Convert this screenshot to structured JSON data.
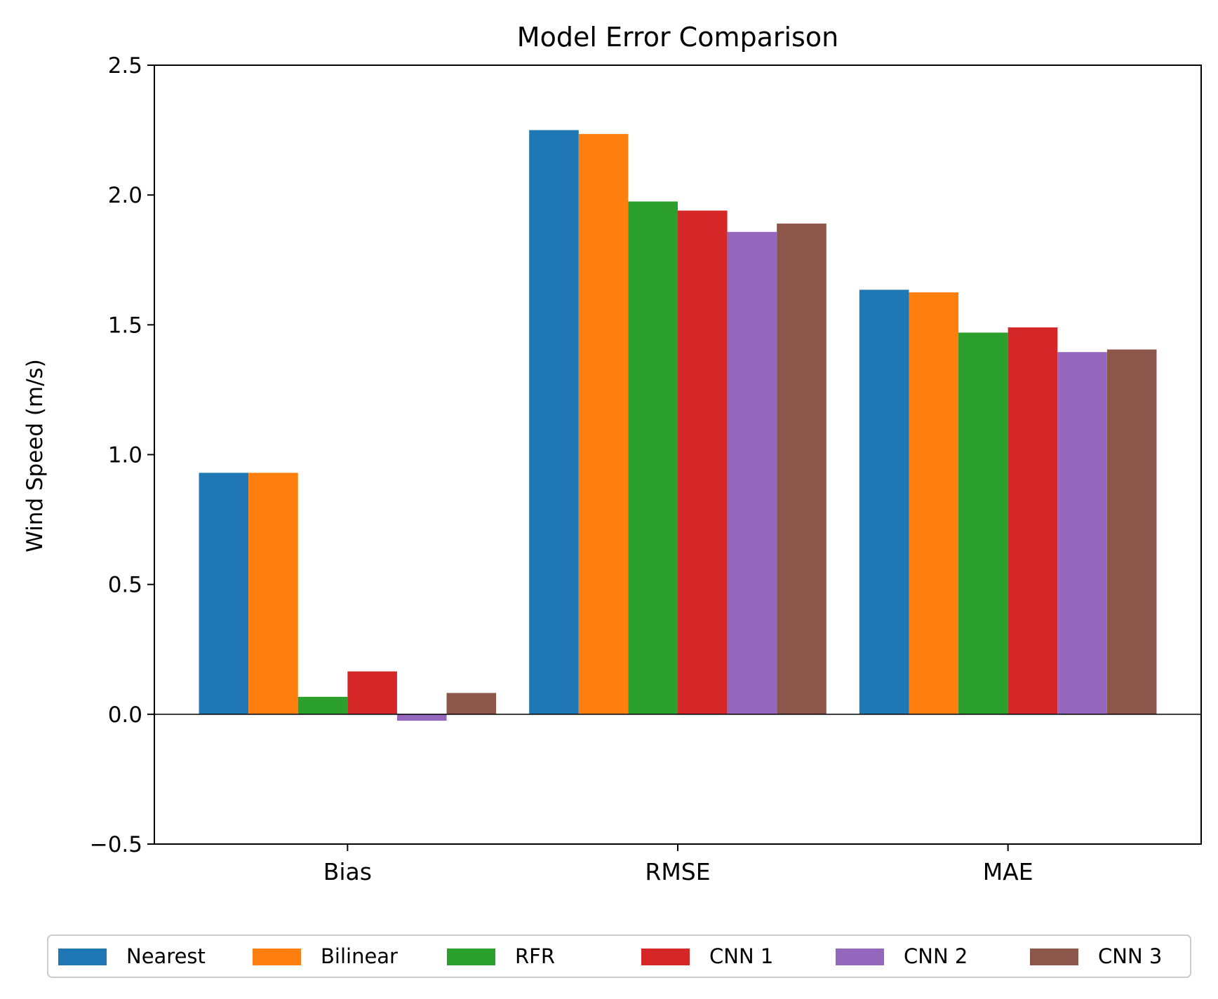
{
  "chart_data": {
    "type": "bar",
    "title": "Model Error Comparison",
    "xlabel": "",
    "ylabel": "Wind Speed (m/s)",
    "ylim": [
      -0.5,
      2.5
    ],
    "yticks": [
      -0.5,
      0.0,
      0.5,
      1.0,
      1.5,
      2.0,
      2.5
    ],
    "ytick_labels": [
      "−0.5",
      "0.0",
      "0.5",
      "1.0",
      "1.5",
      "2.0",
      "2.5"
    ],
    "categories": [
      "Bias",
      "RMSE",
      "MAE"
    ],
    "grid": false,
    "zero_line": true,
    "legend_position": "bottom-center",
    "series": [
      {
        "name": "Nearest",
        "color": "#1f77b4",
        "values": [
          0.93,
          2.25,
          1.635
        ]
      },
      {
        "name": "Bilinear",
        "color": "#ff7f0e",
        "values": [
          0.93,
          2.235,
          1.625
        ]
      },
      {
        "name": "RFR",
        "color": "#2ca02c",
        "values": [
          0.067,
          1.975,
          1.47
        ]
      },
      {
        "name": "CNN 1",
        "color": "#d62728",
        "values": [
          0.165,
          1.94,
          1.49
        ]
      },
      {
        "name": "CNN 2",
        "color": "#9467bd",
        "values": [
          -0.025,
          1.858,
          1.395
        ]
      },
      {
        "name": "CNN 3",
        "color": "#8c564b",
        "values": [
          0.082,
          1.89,
          1.405
        ]
      }
    ]
  }
}
